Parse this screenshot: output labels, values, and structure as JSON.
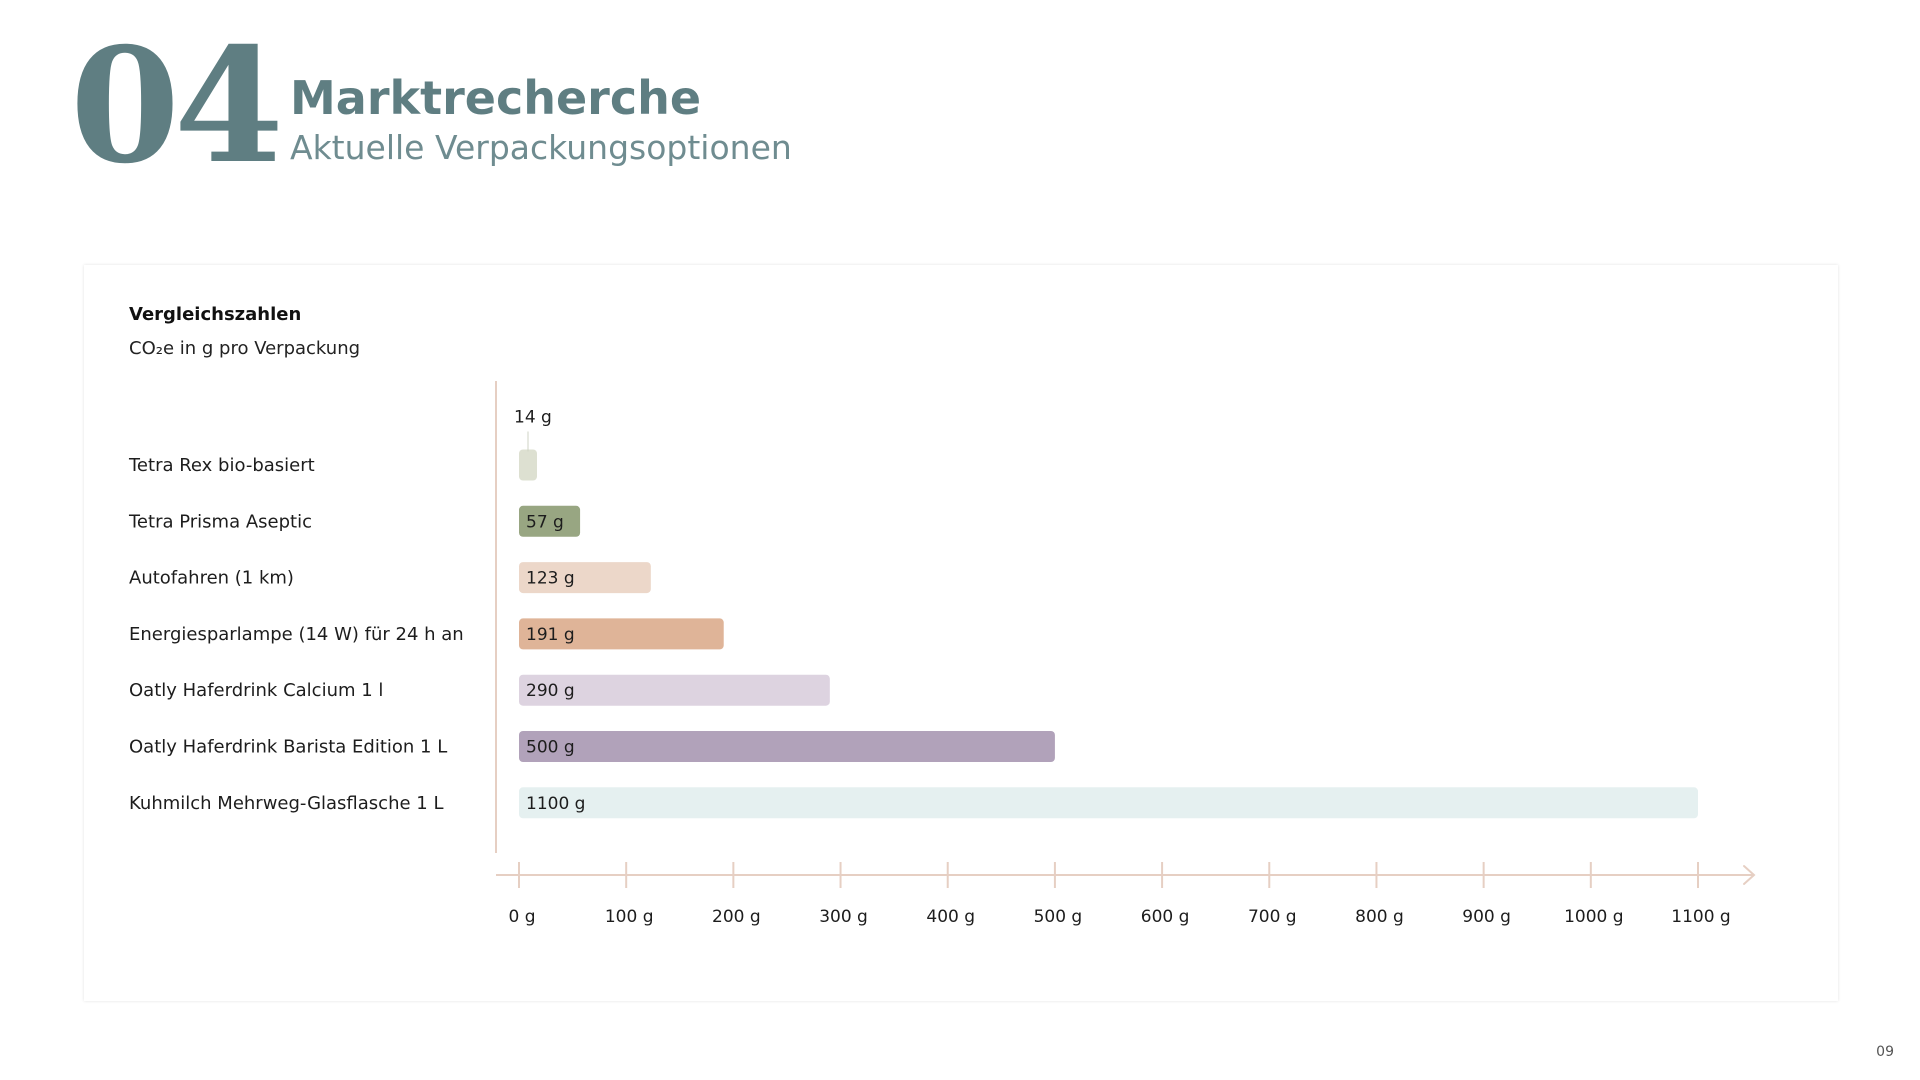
{
  "header": {
    "section_number": "04",
    "title": "Marktrecherche",
    "subtitle": "Aktuelle Verpackungsoptionen"
  },
  "page_number": "09",
  "colors": {
    "accent": "#5f7e82",
    "axis": "#e6cfc3"
  },
  "chart_data": {
    "type": "bar",
    "orientation": "horizontal",
    "title": "Vergleichszahlen",
    "subtitle": "CO₂e in g pro Verpackung",
    "categories": [
      "Tetra Rex bio-basiert",
      "Tetra Prisma Aseptic",
      "Autofahren (1 km)",
      "Energiesparlampe (14 W) für 24 h an",
      "Oatly Haferdrink Calcium 1 l",
      "Oatly Haferdrink Barista Edition 1 L",
      "Kuhmilch Mehrweg-Glasflasche 1 L"
    ],
    "values": [
      14,
      57,
      123,
      191,
      290,
      500,
      1100
    ],
    "value_labels": [
      "14 g",
      "57 g",
      "123 g",
      "191 g",
      "290 g",
      "500 g",
      "1100 g"
    ],
    "value_label_outside": [
      true,
      false,
      false,
      false,
      false,
      false,
      false
    ],
    "bar_colors": [
      "#dde0d1",
      "#98a682",
      "#ecd7c9",
      "#dfb498",
      "#ddd3e0",
      "#b1a2ba",
      "#e5f0f0"
    ],
    "xlim": [
      0,
      1100
    ],
    "xticks": [
      0,
      100,
      200,
      300,
      400,
      500,
      600,
      700,
      800,
      900,
      1000,
      1100
    ],
    "xtick_labels": [
      "0 g",
      "100 g",
      "200 g",
      "300 g",
      "400 g",
      "500 g",
      "600 g",
      "700 g",
      "800 g",
      "900 g",
      "1000 g",
      "1100 g"
    ],
    "grid": false,
    "legend": "none"
  }
}
